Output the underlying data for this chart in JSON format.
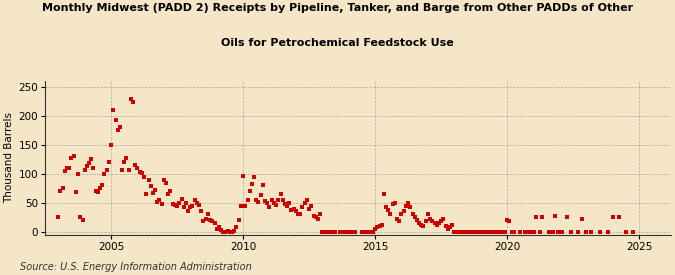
{
  "title_line1": "Monthly Midwest (PADD 2) Receipts by Pipeline, Tanker, and Barge from Other PADDs of Other",
  "title_line2": "Oils for Petrochemical Feedstock Use",
  "ylabel": "Thousand Barrels",
  "source": "Source: U.S. Energy Information Administration",
  "background_color": "#f5e6c8",
  "plot_bg_color": "#f5e6c8",
  "dot_color": "#cc0000",
  "marker_size": 3.5,
  "xlim": [
    2002.5,
    2026.2
  ],
  "ylim": [
    -5,
    260
  ],
  "yticks": [
    0,
    50,
    100,
    150,
    200,
    250
  ],
  "xticks": [
    2005,
    2010,
    2015,
    2020,
    2025
  ],
  "dates": [
    2003.0,
    2003.08,
    2003.17,
    2003.25,
    2003.33,
    2003.42,
    2003.5,
    2003.58,
    2003.67,
    2003.75,
    2003.83,
    2003.92,
    2004.0,
    2004.08,
    2004.17,
    2004.25,
    2004.33,
    2004.42,
    2004.5,
    2004.58,
    2004.67,
    2004.75,
    2004.83,
    2004.92,
    2005.0,
    2005.08,
    2005.17,
    2005.25,
    2005.33,
    2005.42,
    2005.5,
    2005.58,
    2005.67,
    2005.75,
    2005.83,
    2005.92,
    2006.0,
    2006.08,
    2006.17,
    2006.25,
    2006.33,
    2006.42,
    2006.5,
    2006.58,
    2006.67,
    2006.75,
    2006.83,
    2006.92,
    2007.0,
    2007.08,
    2007.17,
    2007.25,
    2007.33,
    2007.42,
    2007.5,
    2007.58,
    2007.67,
    2007.75,
    2007.83,
    2007.92,
    2008.0,
    2008.08,
    2008.17,
    2008.25,
    2008.33,
    2008.42,
    2008.5,
    2008.58,
    2008.67,
    2008.75,
    2008.83,
    2008.92,
    2009.0,
    2009.08,
    2009.17,
    2009.25,
    2009.33,
    2009.42,
    2009.5,
    2009.58,
    2009.67,
    2009.75,
    2009.83,
    2009.92,
    2010.0,
    2010.08,
    2010.17,
    2010.25,
    2010.33,
    2010.42,
    2010.5,
    2010.58,
    2010.67,
    2010.75,
    2010.83,
    2010.92,
    2011.0,
    2011.08,
    2011.17,
    2011.25,
    2011.33,
    2011.42,
    2011.5,
    2011.58,
    2011.67,
    2011.75,
    2011.83,
    2011.92,
    2012.0,
    2012.08,
    2012.17,
    2012.25,
    2012.33,
    2012.42,
    2012.5,
    2012.58,
    2012.67,
    2012.75,
    2012.83,
    2012.92,
    2013.0,
    2013.08,
    2013.17,
    2013.25,
    2013.33,
    2013.42,
    2013.5,
    2013.67,
    2013.83,
    2013.92,
    2014.0,
    2014.08,
    2014.25,
    2014.5,
    2014.58,
    2014.67,
    2014.75,
    2014.83,
    2014.92,
    2015.0,
    2015.08,
    2015.17,
    2015.25,
    2015.33,
    2015.42,
    2015.5,
    2015.58,
    2015.67,
    2015.75,
    2015.83,
    2015.92,
    2016.0,
    2016.08,
    2016.17,
    2016.25,
    2016.33,
    2016.42,
    2016.5,
    2016.58,
    2016.67,
    2016.75,
    2016.83,
    2016.92,
    2017.0,
    2017.08,
    2017.17,
    2017.25,
    2017.33,
    2017.42,
    2017.5,
    2017.58,
    2017.67,
    2017.75,
    2017.83,
    2017.92,
    2018.0,
    2018.08,
    2018.17,
    2018.25,
    2018.33,
    2018.42,
    2018.5,
    2018.58,
    2018.67,
    2018.75,
    2018.83,
    2018.92,
    2019.0,
    2019.08,
    2019.17,
    2019.25,
    2019.33,
    2019.42,
    2019.5,
    2019.58,
    2019.67,
    2019.75,
    2019.83,
    2019.92,
    2020.0,
    2020.08,
    2020.17,
    2020.25,
    2020.5,
    2020.67,
    2020.75,
    2020.83,
    2020.92,
    2021.0,
    2021.08,
    2021.25,
    2021.33,
    2021.58,
    2021.75,
    2021.83,
    2021.92,
    2022.0,
    2022.08,
    2022.25,
    2022.42,
    2022.67,
    2022.83,
    2023.0,
    2023.17,
    2023.5,
    2023.83,
    2024.0,
    2024.25,
    2024.5,
    2024.75
  ],
  "values": [
    25,
    70,
    75,
    105,
    110,
    110,
    128,
    130,
    68,
    100,
    25,
    20,
    107,
    113,
    119,
    125,
    110,
    70,
    68,
    75,
    80,
    100,
    107,
    120,
    150,
    210,
    193,
    175,
    180,
    107,
    120,
    128,
    106,
    230,
    224,
    115,
    110,
    103,
    102,
    95,
    65,
    90,
    79,
    67,
    72,
    52,
    55,
    48,
    90,
    85,
    65,
    70,
    48,
    47,
    45,
    50,
    57,
    43,
    50,
    35,
    42,
    45,
    55,
    50,
    47,
    35,
    18,
    22,
    30,
    20,
    19,
    15,
    5,
    8,
    3,
    0,
    0,
    1,
    0,
    0,
    2,
    8,
    20,
    45,
    97,
    45,
    55,
    70,
    82,
    95,
    55,
    52,
    63,
    80,
    53,
    50,
    42,
    55,
    50,
    47,
    55,
    65,
    55,
    48,
    45,
    50,
    38,
    40,
    35,
    30,
    30,
    42,
    50,
    55,
    40,
    45,
    28,
    25,
    22,
    30,
    0,
    0,
    0,
    0,
    0,
    0,
    0,
    0,
    0,
    0,
    0,
    0,
    0,
    0,
    0,
    0,
    0,
    0,
    0,
    5,
    8,
    10,
    12,
    65,
    42,
    38,
    30,
    48,
    50,
    22,
    18,
    30,
    35,
    45,
    50,
    42,
    30,
    25,
    20,
    15,
    12,
    10,
    18,
    30,
    22,
    18,
    15,
    12,
    15,
    18,
    22,
    10,
    5,
    8,
    12,
    0,
    0,
    0,
    0,
    0,
    0,
    0,
    0,
    0,
    0,
    0,
    0,
    0,
    0,
    0,
    0,
    0,
    0,
    0,
    0,
    0,
    0,
    0,
    0,
    20,
    18,
    0,
    0,
    0,
    0,
    0,
    0,
    0,
    0,
    25,
    0,
    25,
    0,
    0,
    28,
    0,
    0,
    0,
    25,
    0,
    0,
    22,
    0,
    0,
    0,
    0,
    25,
    25,
    0,
    0
  ]
}
